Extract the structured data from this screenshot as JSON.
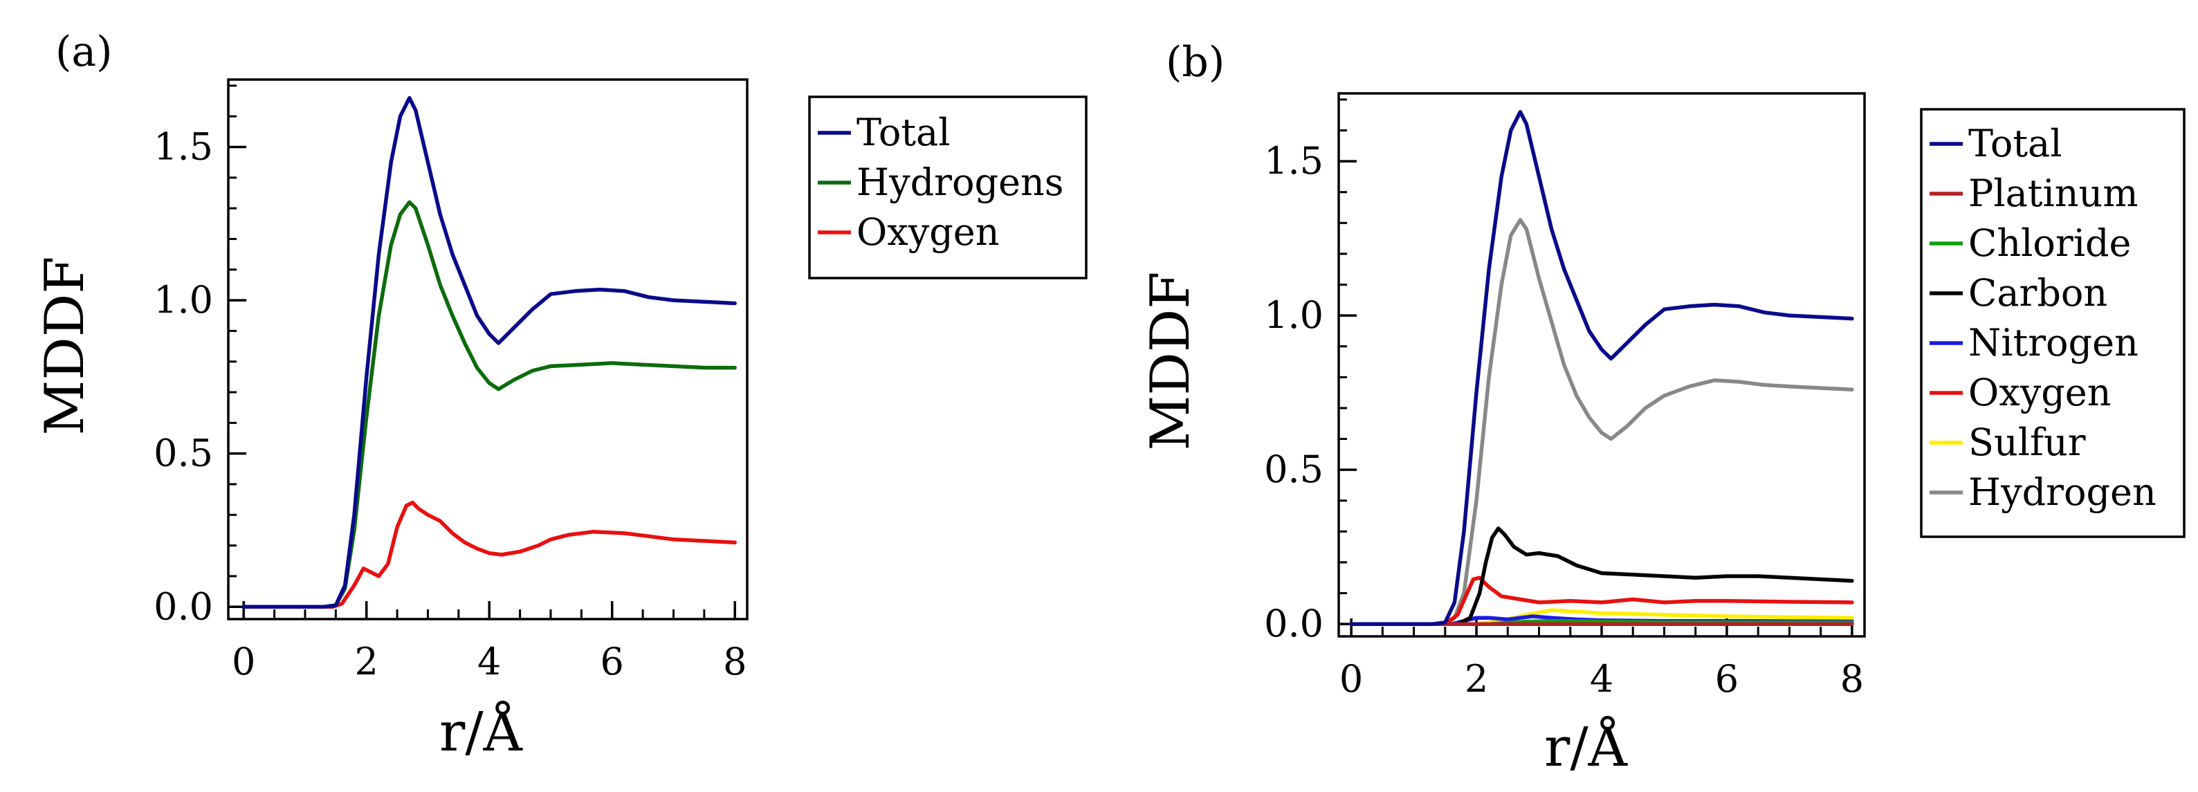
{
  "chart_data": [
    {
      "panel_label": "(a)",
      "type": "line",
      "title": "",
      "xlabel": "r/Å",
      "ylabel": "MDDF",
      "xlim": [
        -0.25,
        8.2
      ],
      "ylim": [
        -0.04,
        1.72
      ],
      "xticks": [
        0,
        2,
        4,
        6,
        8
      ],
      "xtick_labels": [
        "0",
        "2",
        "4",
        "6",
        "8"
      ],
      "yticks": [
        0.0,
        0.5,
        1.0,
        1.5
      ],
      "ytick_labels": [
        "0.0",
        "0.5",
        "1.0",
        "1.5"
      ],
      "grid": false,
      "legend_position": "outside-right-top",
      "series": [
        {
          "name": "Total",
          "color": "#0a0a8c",
          "points": [
            [
              0,
              0
            ],
            [
              1.3,
              0
            ],
            [
              1.5,
              0.005
            ],
            [
              1.65,
              0.07
            ],
            [
              1.8,
              0.3
            ],
            [
              2.0,
              0.75
            ],
            [
              2.2,
              1.15
            ],
            [
              2.4,
              1.45
            ],
            [
              2.55,
              1.6
            ],
            [
              2.7,
              1.66
            ],
            [
              2.8,
              1.62
            ],
            [
              3.0,
              1.45
            ],
            [
              3.2,
              1.28
            ],
            [
              3.4,
              1.15
            ],
            [
              3.6,
              1.05
            ],
            [
              3.8,
              0.95
            ],
            [
              4.0,
              0.89
            ],
            [
              4.15,
              0.86
            ],
            [
              4.4,
              0.91
            ],
            [
              4.7,
              0.97
            ],
            [
              5.0,
              1.02
            ],
            [
              5.4,
              1.03
            ],
            [
              5.8,
              1.035
            ],
            [
              6.2,
              1.03
            ],
            [
              6.6,
              1.01
            ],
            [
              7.0,
              1.0
            ],
            [
              7.5,
              0.995
            ],
            [
              8.0,
              0.99
            ]
          ]
        },
        {
          "name": "Hydrogens",
          "color": "#0d6b0d",
          "points": [
            [
              0,
              0
            ],
            [
              1.3,
              0
            ],
            [
              1.5,
              0.005
            ],
            [
              1.65,
              0.06
            ],
            [
              1.8,
              0.25
            ],
            [
              2.0,
              0.62
            ],
            [
              2.2,
              0.95
            ],
            [
              2.4,
              1.18
            ],
            [
              2.55,
              1.28
            ],
            [
              2.7,
              1.32
            ],
            [
              2.8,
              1.3
            ],
            [
              3.0,
              1.18
            ],
            [
              3.2,
              1.05
            ],
            [
              3.4,
              0.95
            ],
            [
              3.6,
              0.86
            ],
            [
              3.8,
              0.78
            ],
            [
              4.0,
              0.73
            ],
            [
              4.15,
              0.71
            ],
            [
              4.4,
              0.74
            ],
            [
              4.7,
              0.77
            ],
            [
              5.0,
              0.785
            ],
            [
              5.5,
              0.79
            ],
            [
              6.0,
              0.795
            ],
            [
              6.5,
              0.79
            ],
            [
              7.0,
              0.785
            ],
            [
              7.5,
              0.78
            ],
            [
              8.0,
              0.78
            ]
          ]
        },
        {
          "name": "Oxygen",
          "color": "#e81010",
          "points": [
            [
              0,
              0
            ],
            [
              1.45,
              0
            ],
            [
              1.6,
              0.01
            ],
            [
              1.8,
              0.07
            ],
            [
              1.95,
              0.125
            ],
            [
              2.1,
              0.11
            ],
            [
              2.2,
              0.1
            ],
            [
              2.35,
              0.14
            ],
            [
              2.5,
              0.26
            ],
            [
              2.65,
              0.33
            ],
            [
              2.75,
              0.34
            ],
            [
              2.85,
              0.32
            ],
            [
              3.0,
              0.3
            ],
            [
              3.2,
              0.28
            ],
            [
              3.4,
              0.24
            ],
            [
              3.6,
              0.21
            ],
            [
              3.8,
              0.19
            ],
            [
              4.0,
              0.175
            ],
            [
              4.2,
              0.17
            ],
            [
              4.5,
              0.18
            ],
            [
              4.8,
              0.2
            ],
            [
              5.0,
              0.22
            ],
            [
              5.3,
              0.235
            ],
            [
              5.7,
              0.245
            ],
            [
              6.2,
              0.24
            ],
            [
              6.6,
              0.23
            ],
            [
              7.0,
              0.22
            ],
            [
              7.5,
              0.215
            ],
            [
              8.0,
              0.21
            ]
          ]
        }
      ]
    },
    {
      "panel_label": "(b)",
      "type": "line",
      "title": "",
      "xlabel": "r/Å",
      "ylabel": "MDDF",
      "xlim": [
        -0.2,
        8.2
      ],
      "ylim": [
        -0.04,
        1.72
      ],
      "xticks": [
        0,
        2,
        4,
        6,
        8
      ],
      "xtick_labels": [
        "0",
        "2",
        "4",
        "6",
        "8"
      ],
      "yticks": [
        0.0,
        0.5,
        1.0,
        1.5
      ],
      "ytick_labels": [
        "0.0",
        "0.5",
        "1.0",
        "1.5"
      ],
      "grid": false,
      "legend_position": "outside-right-top",
      "series": [
        {
          "name": "Total",
          "color": "#0a0a8c",
          "points": [
            [
              0,
              0
            ],
            [
              1.3,
              0
            ],
            [
              1.5,
              0.005
            ],
            [
              1.65,
              0.07
            ],
            [
              1.8,
              0.3
            ],
            [
              2.0,
              0.75
            ],
            [
              2.2,
              1.15
            ],
            [
              2.4,
              1.45
            ],
            [
              2.55,
              1.6
            ],
            [
              2.7,
              1.66
            ],
            [
              2.8,
              1.62
            ],
            [
              3.0,
              1.45
            ],
            [
              3.2,
              1.28
            ],
            [
              3.4,
              1.15
            ],
            [
              3.6,
              1.05
            ],
            [
              3.8,
              0.95
            ],
            [
              4.0,
              0.89
            ],
            [
              4.15,
              0.86
            ],
            [
              4.4,
              0.91
            ],
            [
              4.7,
              0.97
            ],
            [
              5.0,
              1.02
            ],
            [
              5.4,
              1.03
            ],
            [
              5.8,
              1.035
            ],
            [
              6.2,
              1.03
            ],
            [
              6.6,
              1.01
            ],
            [
              7.0,
              1.0
            ],
            [
              7.5,
              0.995
            ],
            [
              8.0,
              0.99
            ]
          ]
        },
        {
          "name": "Platinum",
          "color": "#b22222",
          "points": [
            [
              0,
              0
            ],
            [
              8.0,
              0
            ]
          ]
        },
        {
          "name": "Chloride",
          "color": "#10a010",
          "points": [
            [
              0,
              0
            ],
            [
              2.2,
              0
            ],
            [
              2.5,
              0.004
            ],
            [
              2.8,
              0.008
            ],
            [
              3.2,
              0.01
            ],
            [
              4.0,
              0.008
            ],
            [
              5.0,
              0.006
            ],
            [
              8.0,
              0.005
            ]
          ]
        },
        {
          "name": "Carbon",
          "color": "#000000",
          "points": [
            [
              0,
              0
            ],
            [
              1.7,
              0
            ],
            [
              1.9,
              0.02
            ],
            [
              2.05,
              0.1
            ],
            [
              2.15,
              0.2
            ],
            [
              2.25,
              0.28
            ],
            [
              2.35,
              0.31
            ],
            [
              2.45,
              0.29
            ],
            [
              2.6,
              0.25
            ],
            [
              2.8,
              0.225
            ],
            [
              3.0,
              0.23
            ],
            [
              3.3,
              0.22
            ],
            [
              3.6,
              0.19
            ],
            [
              4.0,
              0.165
            ],
            [
              4.5,
              0.16
            ],
            [
              5.0,
              0.155
            ],
            [
              5.5,
              0.15
            ],
            [
              6.0,
              0.155
            ],
            [
              6.5,
              0.155
            ],
            [
              7.0,
              0.15
            ],
            [
              7.5,
              0.145
            ],
            [
              8.0,
              0.14
            ]
          ]
        },
        {
          "name": "Nitrogen",
          "color": "#1a1ae6",
          "points": [
            [
              0,
              0
            ],
            [
              1.6,
              0
            ],
            [
              1.8,
              0.01
            ],
            [
              2.0,
              0.02
            ],
            [
              2.2,
              0.02
            ],
            [
              2.5,
              0.015
            ],
            [
              2.9,
              0.025
            ],
            [
              3.2,
              0.02
            ],
            [
              3.6,
              0.015
            ],
            [
              4.0,
              0.012
            ],
            [
              5.0,
              0.01
            ],
            [
              6.0,
              0.01
            ],
            [
              8.0,
              0.008
            ]
          ]
        },
        {
          "name": "Oxygen",
          "color": "#e81010",
          "points": [
            [
              0,
              0
            ],
            [
              1.5,
              0
            ],
            [
              1.7,
              0.03
            ],
            [
              1.85,
              0.1
            ],
            [
              1.95,
              0.145
            ],
            [
              2.05,
              0.15
            ],
            [
              2.2,
              0.12
            ],
            [
              2.4,
              0.09
            ],
            [
              2.7,
              0.08
            ],
            [
              3.0,
              0.07
            ],
            [
              3.5,
              0.075
            ],
            [
              4.0,
              0.07
            ],
            [
              4.5,
              0.08
            ],
            [
              5.0,
              0.07
            ],
            [
              5.5,
              0.075
            ],
            [
              6.0,
              0.075
            ],
            [
              7.0,
              0.072
            ],
            [
              8.0,
              0.07
            ]
          ]
        },
        {
          "name": "Sulfur",
          "color": "#ffee00",
          "points": [
            [
              0,
              0
            ],
            [
              2.0,
              0
            ],
            [
              2.4,
              0.01
            ],
            [
              2.8,
              0.03
            ],
            [
              3.2,
              0.045
            ],
            [
              3.6,
              0.04
            ],
            [
              4.0,
              0.035
            ],
            [
              5.0,
              0.03
            ],
            [
              6.0,
              0.025
            ],
            [
              7.0,
              0.022
            ],
            [
              8.0,
              0.02
            ]
          ]
        },
        {
          "name": "Hydrogen",
          "color": "#888888",
          "points": [
            [
              0,
              0
            ],
            [
              1.5,
              0
            ],
            [
              1.65,
              0.02
            ],
            [
              1.8,
              0.1
            ],
            [
              2.0,
              0.4
            ],
            [
              2.2,
              0.8
            ],
            [
              2.4,
              1.1
            ],
            [
              2.55,
              1.26
            ],
            [
              2.7,
              1.31
            ],
            [
              2.8,
              1.28
            ],
            [
              3.0,
              1.12
            ],
            [
              3.2,
              0.98
            ],
            [
              3.4,
              0.84
            ],
            [
              3.6,
              0.74
            ],
            [
              3.8,
              0.67
            ],
            [
              4.0,
              0.62
            ],
            [
              4.15,
              0.6
            ],
            [
              4.4,
              0.64
            ],
            [
              4.7,
              0.7
            ],
            [
              5.0,
              0.74
            ],
            [
              5.4,
              0.77
            ],
            [
              5.8,
              0.79
            ],
            [
              6.2,
              0.785
            ],
            [
              6.6,
              0.775
            ],
            [
              7.0,
              0.77
            ],
            [
              7.5,
              0.765
            ],
            [
              8.0,
              0.76
            ]
          ]
        }
      ]
    }
  ]
}
